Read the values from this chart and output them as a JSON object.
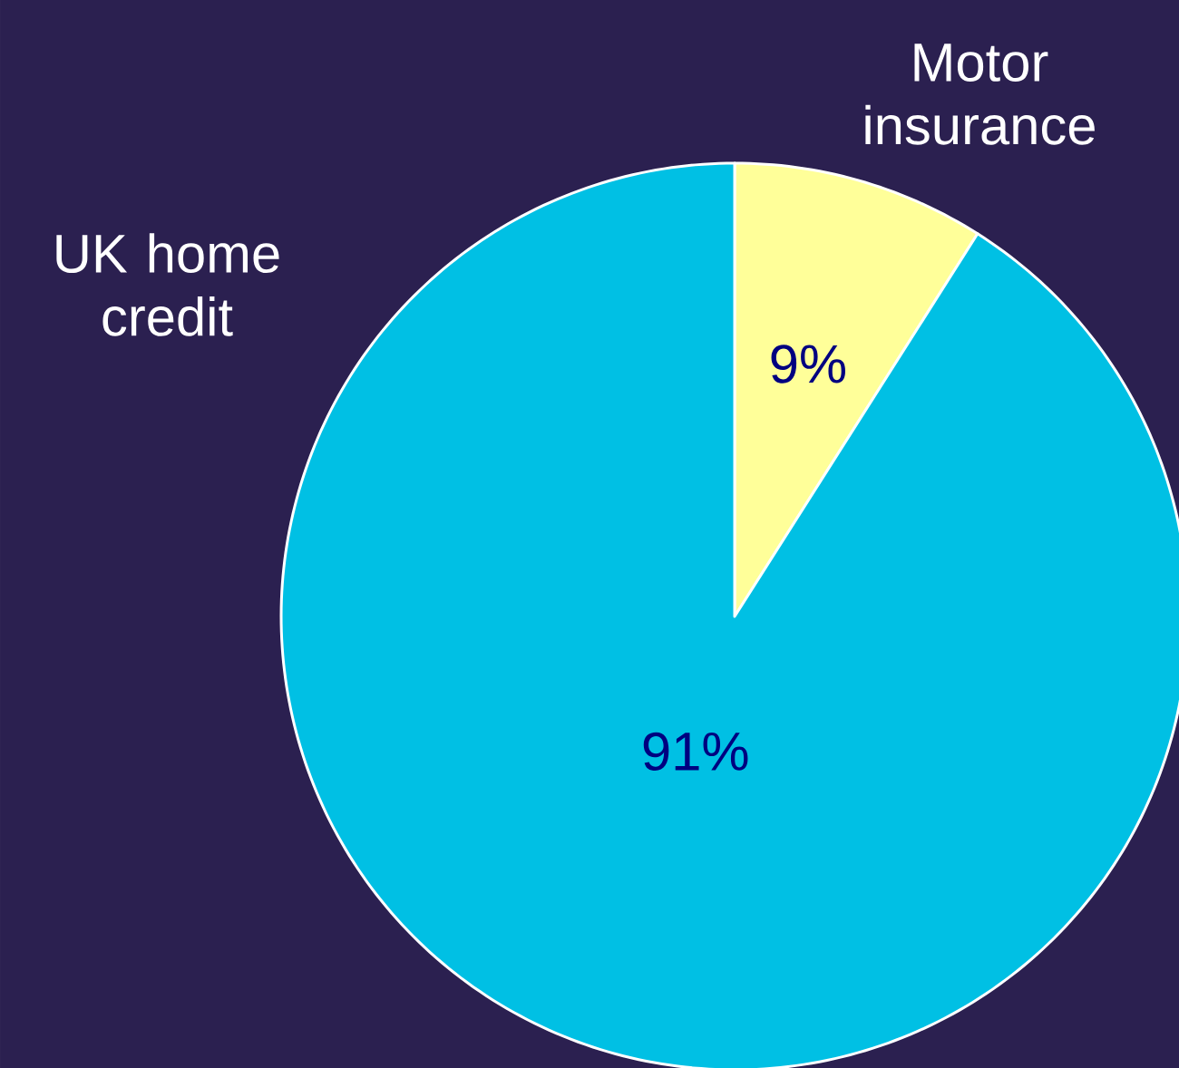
{
  "chart_data": {
    "type": "pie",
    "categories": [
      "Motor insurance",
      "UK home credit"
    ],
    "values": [
      9,
      91
    ],
    "colors": [
      "#ffff99",
      "#00c0e4"
    ],
    "value_labels": [
      "9%",
      "91%"
    ]
  }
}
